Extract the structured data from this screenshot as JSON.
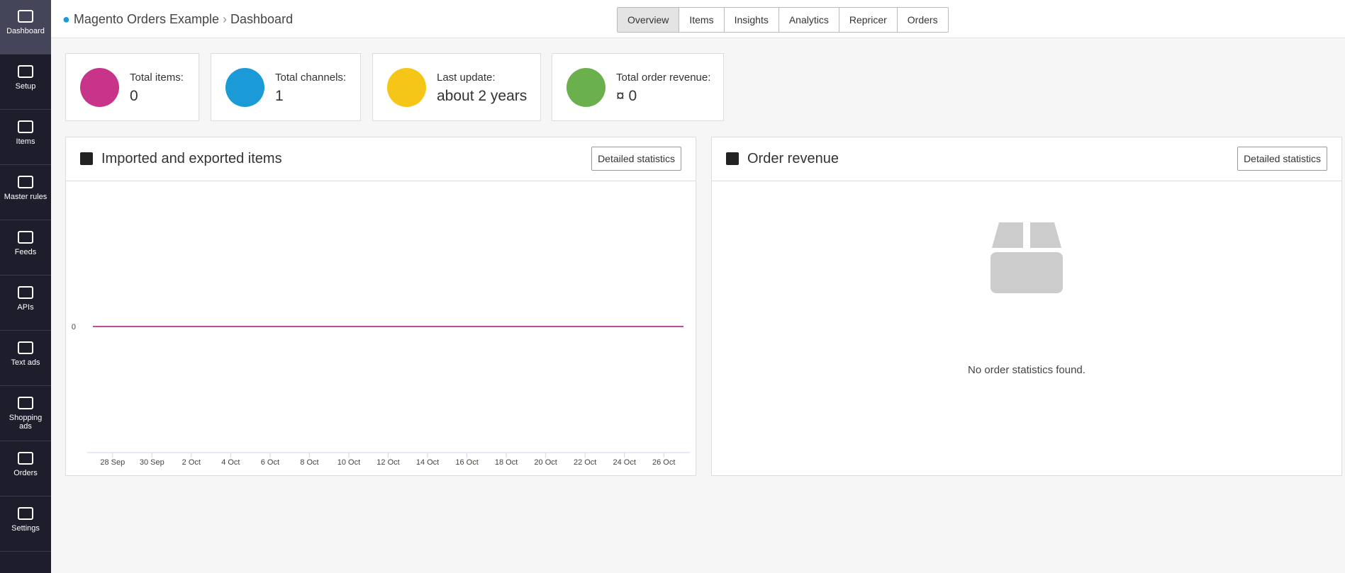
{
  "sidebar": [
    {
      "label": "Dashboard"
    },
    {
      "label": "Setup"
    },
    {
      "label": "Items"
    },
    {
      "label": "Master rules"
    },
    {
      "label": "Feeds"
    },
    {
      "label": "APIs"
    },
    {
      "label": "Text ads"
    },
    {
      "label": "Shopping ads"
    },
    {
      "label": "Orders"
    },
    {
      "label": "Settings"
    }
  ],
  "breadcrumb": {
    "project": "Magento Orders Example",
    "page": "Dashboard"
  },
  "tabs": [
    "Overview",
    "Items",
    "Insights",
    "Analytics",
    "Repricer",
    "Orders"
  ],
  "stats": [
    {
      "label": "Total items:",
      "value": "0"
    },
    {
      "label": "Total channels:",
      "value": "1"
    },
    {
      "label": "Last update:",
      "value": "about 2 years"
    },
    {
      "label": "Total order revenue:",
      "value": "¤ 0"
    }
  ],
  "items_panel": {
    "title": "Imported and exported items",
    "button": "Detailed statistics",
    "chart": {
      "type": "line",
      "color": "#c2499b",
      "ylim": [
        -1,
        1
      ],
      "yticks": [
        0
      ],
      "categories": [
        null,
        "28 Sep",
        null,
        "30 Sep",
        null,
        "2 Oct",
        null,
        "4 Oct",
        null,
        "6 Oct",
        null,
        "8 Oct",
        null,
        "10 Oct",
        null,
        "12 Oct",
        null,
        "14 Oct",
        null,
        "16 Oct",
        null,
        "18 Oct",
        null,
        "20 Oct",
        null,
        "22 Oct",
        null,
        "24 Oct",
        null,
        "26 Oct",
        null
      ],
      "values": [
        0,
        0,
        0,
        0,
        0,
        0,
        0,
        0,
        0,
        0,
        0,
        0,
        0,
        0,
        0,
        0,
        0,
        0,
        0,
        0,
        0,
        0,
        0,
        0,
        0,
        0,
        0,
        0,
        0,
        0,
        0
      ]
    }
  },
  "revenue_panel": {
    "title": "Order revenue",
    "button": "Detailed statistics",
    "empty": "No order statistics found."
  }
}
